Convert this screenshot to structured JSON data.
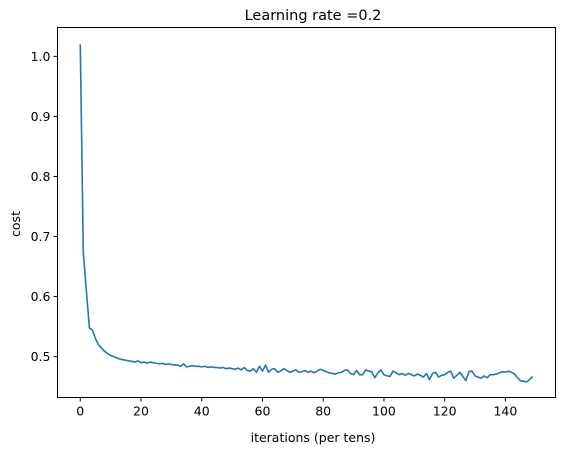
{
  "chart_data": {
    "type": "line",
    "title": "Learning rate =0.2",
    "xlabel": "iterations (per tens)",
    "ylabel": "cost",
    "xlim": [
      -7.5,
      156.5
    ],
    "ylim": [
      0.432,
      1.048
    ],
    "xticks": [
      0,
      20,
      40,
      60,
      80,
      100,
      120,
      140
    ],
    "yticks": [
      0.5,
      0.6,
      0.7,
      0.8,
      0.9,
      1.0
    ],
    "xtick_labels": [
      "0",
      "20",
      "40",
      "60",
      "80",
      "100",
      "120",
      "140"
    ],
    "ytick_labels": [
      "0.5",
      "0.6",
      "0.7",
      "0.8",
      "0.9",
      "1.0"
    ],
    "grid": false,
    "line_color": "#1f77b4",
    "series": [
      {
        "x": [
          0,
          1,
          2,
          3,
          4,
          5,
          6,
          7,
          8,
          9,
          10,
          11,
          12,
          13,
          14,
          15,
          16,
          17,
          18,
          19,
          20,
          21,
          22,
          23,
          24,
          25,
          26,
          27,
          28,
          29,
          30,
          31,
          32,
          33,
          34,
          35,
          36,
          37,
          38,
          39,
          40,
          41,
          42,
          43,
          44,
          45,
          46,
          47,
          48,
          49,
          50,
          51,
          52,
          53,
          54,
          55,
          56,
          57,
          58,
          59,
          60,
          61,
          62,
          63,
          64,
          65,
          66,
          67,
          68,
          69,
          70,
          71,
          72,
          73,
          74,
          75,
          76,
          77,
          78,
          79,
          80,
          81,
          82,
          83,
          84,
          85,
          86,
          87,
          88,
          89,
          90,
          91,
          92,
          93,
          94,
          95,
          96,
          97,
          98,
          99,
          100,
          101,
          102,
          103,
          104,
          105,
          106,
          107,
          108,
          109,
          110,
          111,
          112,
          113,
          114,
          115,
          116,
          117,
          118,
          119,
          120,
          121,
          122,
          123,
          124,
          125,
          126,
          127,
          128,
          129,
          130,
          131,
          132,
          133,
          134,
          135,
          136,
          137,
          138,
          139,
          140,
          141,
          142,
          143,
          144,
          145,
          146,
          147,
          148,
          149
        ],
        "values": [
          1.02,
          0.673,
          0.61,
          0.548,
          0.544,
          0.53,
          0.52,
          0.514,
          0.509,
          0.505,
          0.502,
          0.5,
          0.498,
          0.496,
          0.495,
          0.494,
          0.493,
          0.492,
          0.491,
          0.493,
          0.49,
          0.491,
          0.489,
          0.491,
          0.49,
          0.489,
          0.488,
          0.489,
          0.487,
          0.488,
          0.487,
          0.486,
          0.486,
          0.484,
          0.488,
          0.483,
          0.484,
          0.485,
          0.484,
          0.484,
          0.483,
          0.484,
          0.482,
          0.483,
          0.482,
          0.482,
          0.481,
          0.482,
          0.48,
          0.481,
          0.48,
          0.479,
          0.481,
          0.478,
          0.482,
          0.477,
          0.476,
          0.48,
          0.474,
          0.484,
          0.476,
          0.486,
          0.474,
          0.479,
          0.48,
          0.474,
          0.476,
          0.48,
          0.477,
          0.474,
          0.476,
          0.478,
          0.474,
          0.475,
          0.477,
          0.474,
          0.476,
          0.473,
          0.476,
          0.479,
          0.477,
          0.475,
          0.473,
          0.472,
          0.471,
          0.473,
          0.474,
          0.477,
          0.478,
          0.472,
          0.47,
          0.477,
          0.47,
          0.47,
          0.478,
          0.476,
          0.475,
          0.465,
          0.473,
          0.478,
          0.47,
          0.468,
          0.467,
          0.476,
          0.473,
          0.47,
          0.472,
          0.469,
          0.472,
          0.47,
          0.468,
          0.471,
          0.469,
          0.466,
          0.472,
          0.462,
          0.472,
          0.474,
          0.466,
          0.469,
          0.47,
          0.474,
          0.476,
          0.464,
          0.469,
          0.474,
          0.467,
          0.46,
          0.475,
          0.476,
          0.468,
          0.466,
          0.464,
          0.468,
          0.465,
          0.47,
          0.47,
          0.471,
          0.473,
          0.475,
          0.474,
          0.476,
          0.474,
          0.471,
          0.465,
          0.46,
          0.459,
          0.458,
          0.462,
          0.467
        ]
      }
    ]
  }
}
